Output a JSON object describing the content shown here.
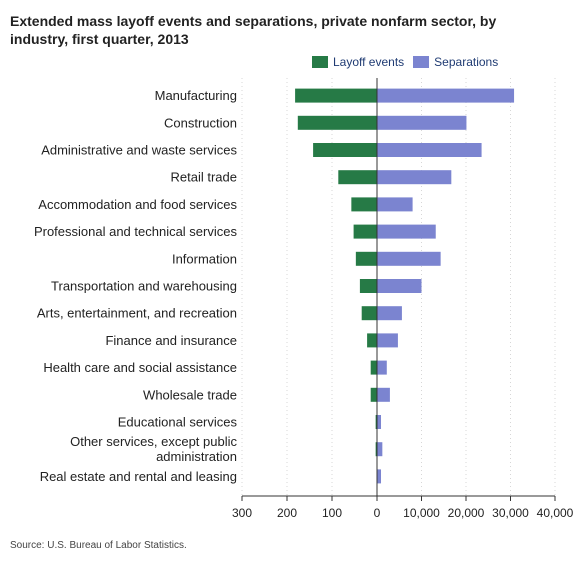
{
  "title": "Extended mass layoff events and separations, private nonfarm sector, by industry, first quarter, 2013",
  "source": "Source: U.S. Bureau of Labor Statistics.",
  "colors": {
    "layoff": "#267a46",
    "separations": "#7b84d0",
    "grid": "#d7d7d7",
    "axis": "#333333"
  },
  "chart_data": {
    "type": "bar",
    "orientation": "horizontal-butterfly",
    "title": "Extended mass layoff events and separations, private nonfarm sector, by industry, first quarter, 2013",
    "legend_position": "top-right",
    "categories": [
      "Manufacturing",
      "Construction",
      "Administrative and waste services",
      "Retail trade",
      "Accommodation and food services",
      "Professional and technical services",
      "Information",
      "Transportation and warehousing",
      "Arts, entertainment, and recreation",
      "Finance and insurance",
      "Health care and social assistance",
      "Wholesale trade",
      "Educational services",
      "Other services, except public administration",
      "Real estate and rental and leasing"
    ],
    "series": [
      {
        "name": "Layoff events",
        "axis": "left",
        "xlim": [
          0,
          300
        ],
        "ticks": [
          "300",
          "200",
          "100",
          "0"
        ],
        "values": [
          182,
          176,
          142,
          86,
          57,
          52,
          47,
          38,
          34,
          22,
          14,
          14,
          3,
          3,
          1
        ]
      },
      {
        "name": "Separations",
        "axis": "right",
        "xlim": [
          0,
          40000
        ],
        "ticks": [
          "0",
          "10,000",
          "20,000",
          "30,000",
          "40,000"
        ],
        "values": [
          30800,
          20100,
          23500,
          16700,
          8000,
          13200,
          14300,
          10000,
          5600,
          4700,
          2200,
          2900,
          900,
          1200,
          900
        ]
      }
    ],
    "grid": true
  }
}
